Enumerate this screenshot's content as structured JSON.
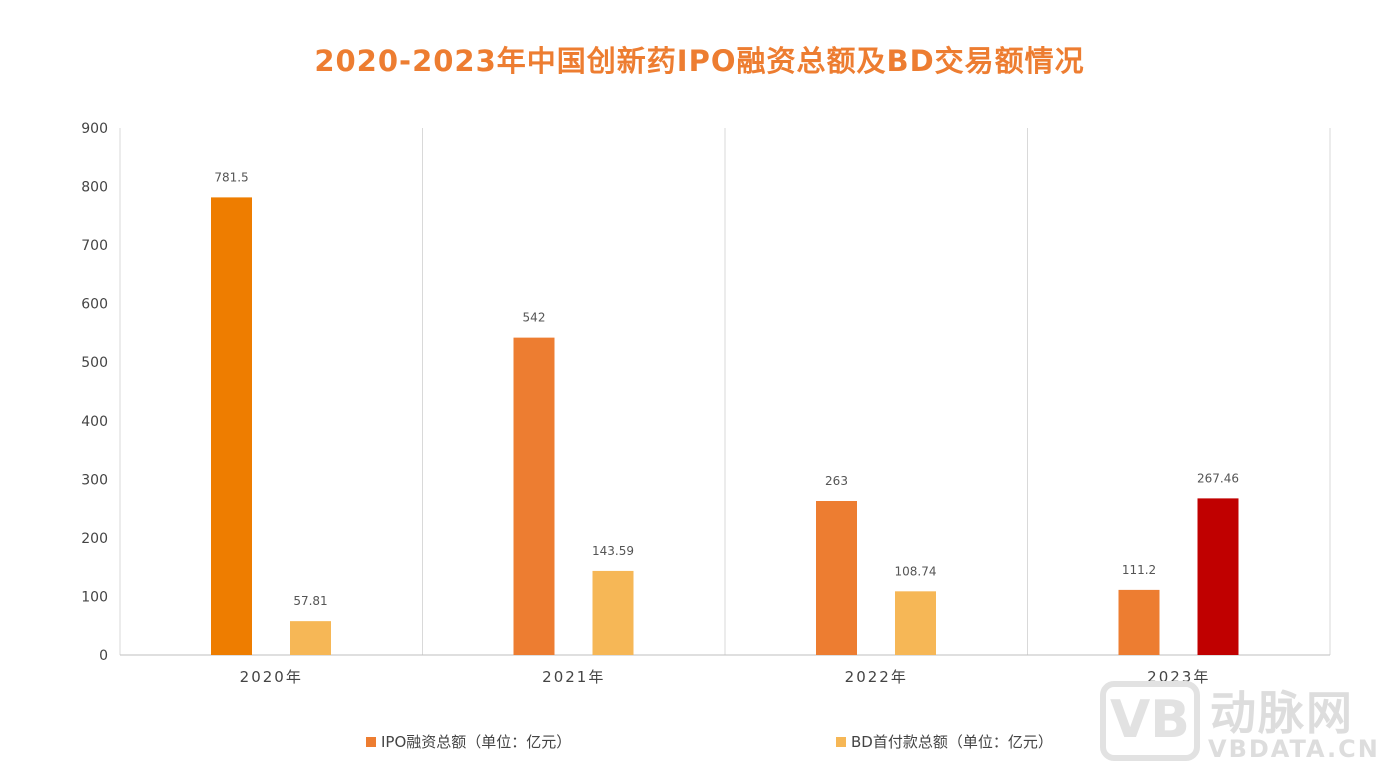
{
  "chart_data": {
    "type": "bar",
    "title": "2020-2023年中国创新药IPO融资总额及BD交易额情况",
    "categories": [
      "2020年",
      "2021年",
      "2022年",
      "2023年"
    ],
    "series": [
      {
        "name": "IPO融资总额（单位：亿元）",
        "values": [
          781.5,
          542,
          263,
          111.2
        ],
        "labels": [
          "781.5",
          "542",
          "263",
          "111.2"
        ],
        "color": "#ED7D31",
        "point_colors": [
          "#EE7D00",
          "#ED7D31",
          "#ED7D31",
          "#ED7D31"
        ]
      },
      {
        "name": "BD首付款总额（单位：亿元）",
        "values": [
          57.81,
          143.59,
          108.74,
          267.46
        ],
        "labels": [
          "57.81",
          "143.59",
          "108.74",
          "267.46"
        ],
        "color": "#F6B756",
        "point_colors": [
          "#F6B756",
          "#F6B756",
          "#F6B756",
          "#C00000"
        ]
      }
    ],
    "ylim": [
      0,
      900
    ],
    "yticks": [
      "0",
      "100",
      "200",
      "300",
      "400",
      "500",
      "600",
      "700",
      "800",
      "900"
    ],
    "xlabel": "",
    "ylabel": "",
    "grid": "vertical category separators",
    "legend": "bottom"
  },
  "watermark": {
    "logo": "VB",
    "name": "动脉网",
    "domain": "VBDATA.CN"
  }
}
